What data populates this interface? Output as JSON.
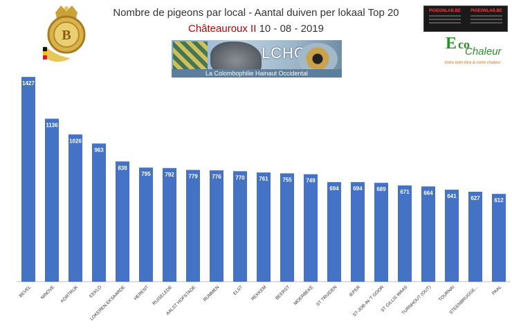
{
  "header": {
    "title": "Nombre de pigeons par local - Aantal duiven per lokaal  Top 20",
    "subtitle_place": "Châteauroux II",
    "subtitle_date": "10 - 08 - 2019"
  },
  "logos": {
    "lcho_text": "LCHO",
    "lcho_subtext": "La Colombophilie Hainaut Occidental",
    "pigeonlab_brand": "PIGEONLAB.BE",
    "eco_letter": "E",
    "eco_co": "co",
    "eco_word": "Chaleur",
    "eco_tagline": "Votre bien-être & votre chaleur"
  },
  "colors": {
    "bar": "#4472c4",
    "axis": "#bfbfbf",
    "value_label": "#ffffff"
  },
  "chart_data": {
    "type": "bar",
    "title": "Nombre de pigeons par local - Aantal duiven per lokaal  Top 20",
    "categories": [
      "BEVEL",
      "NINOVE",
      "KORTRIJK",
      "EEKLO",
      "LOKEREN EKSAARDE",
      "HERENT",
      "RUISELEDE",
      "AALST HOFSTADE",
      "RUMMEN",
      "ELST",
      "REKKEM",
      "BEERST",
      "MOERBEKE",
      "ST TRUIDEN",
      "IEPER",
      "ST-JOB-IN-'T GOOR",
      "ST GILLIS WAAS",
      "TURNHOUT (OUT)",
      "TOURNAI",
      "STEENBRUGGE...",
      "PAAL"
    ],
    "values": [
      1427,
      1136,
      1026,
      963,
      838,
      795,
      792,
      779,
      776,
      770,
      761,
      755,
      749,
      694,
      694,
      689,
      671,
      664,
      641,
      627,
      612
    ],
    "ylim": [
      0,
      1500
    ],
    "grid": false,
    "legend": "none",
    "data_labels": true
  }
}
